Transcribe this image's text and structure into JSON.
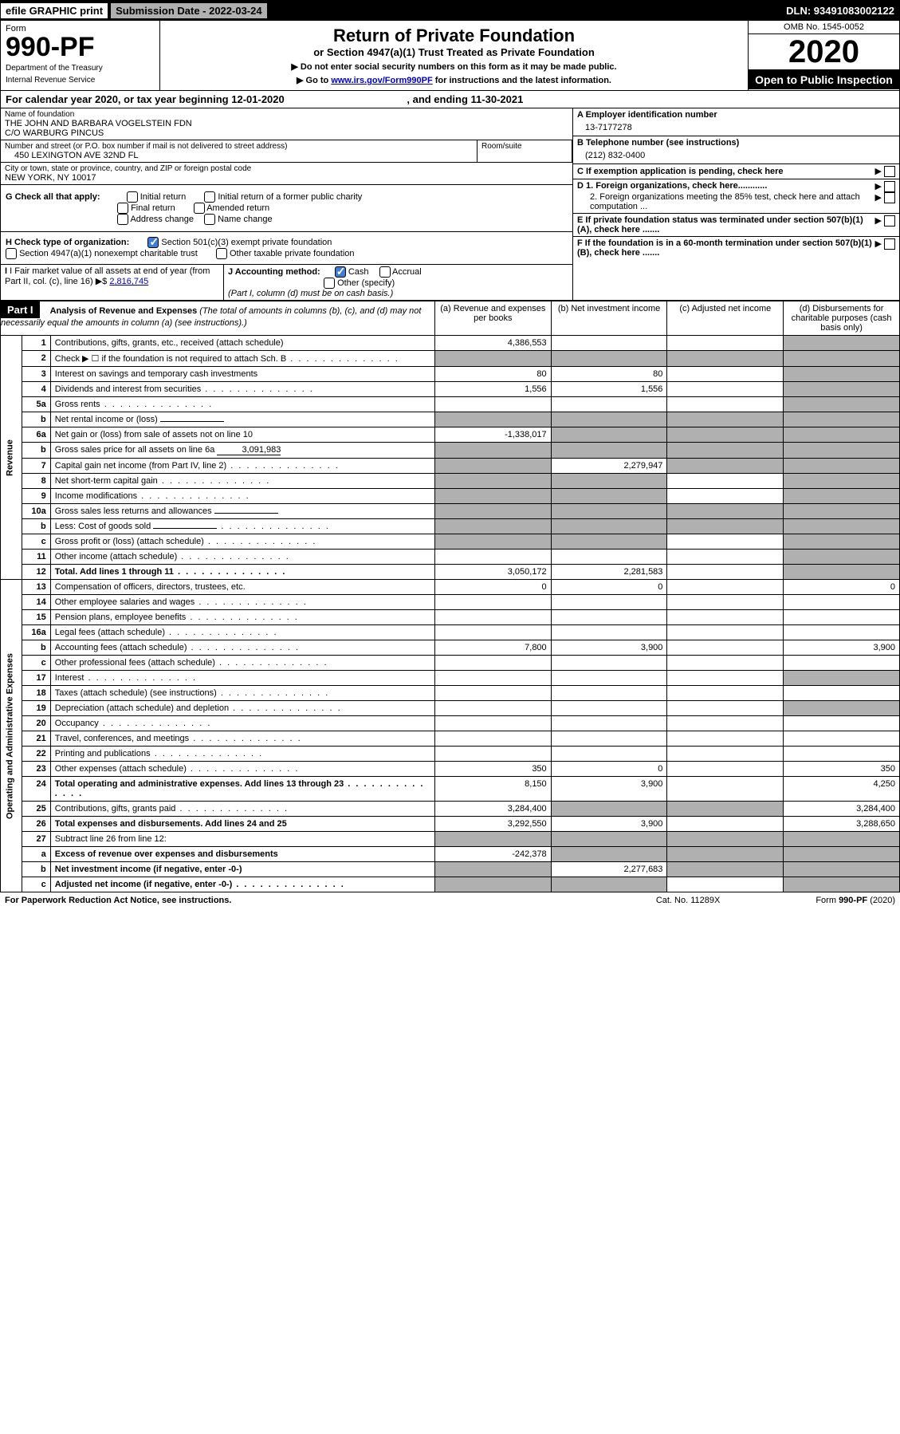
{
  "topbar": {
    "efile": "efile GRAPHIC print",
    "submission_label": "Submission Date - 2022-03-24",
    "dln": "DLN: 93491083002122"
  },
  "header": {
    "form_label": "Form",
    "form_number": "990-PF",
    "dept1": "Department of the Treasury",
    "dept2": "Internal Revenue Service",
    "title": "Return of Private Foundation",
    "subtitle": "or Section 4947(a)(1) Trust Treated as Private Foundation",
    "instr1": "▶ Do not enter social security numbers on this form as it may be made public.",
    "instr2_pre": "▶ Go to ",
    "instr2_link": "www.irs.gov/Form990PF",
    "instr2_post": " for instructions and the latest information.",
    "omb": "OMB No. 1545-0052",
    "year": "2020",
    "open": "Open to Public Inspection"
  },
  "calendar": {
    "text_pre": "For calendar year 2020, or tax year beginning ",
    "begin": "12-01-2020",
    "mid": " , and ending ",
    "end": "11-30-2021"
  },
  "identity": {
    "name_label": "Name of foundation",
    "name1": "THE JOHN AND BARBARA VOGELSTEIN FDN",
    "name2": "C/O WARBURG PINCUS",
    "addr_label": "Number and street (or P.O. box number if mail is not delivered to street address)",
    "addr": "450 LEXINGTON AVE 32ND FL",
    "room_label": "Room/suite",
    "city_label": "City or town, state or province, country, and ZIP or foreign postal code",
    "city": "NEW YORK, NY  10017",
    "a_label": "A Employer identification number",
    "a_val": "13-7177278",
    "b_label": "B Telephone number (see instructions)",
    "b_val": "(212) 832-0400",
    "c_label": "C If exemption application is pending, check here",
    "d1": "D 1. Foreign organizations, check here............",
    "d2": "2. Foreign organizations meeting the 85% test, check here and attach computation ...",
    "e_label": "E  If private foundation status was terminated under section 507(b)(1)(A), check here .......",
    "f_label": "F  If the foundation is in a 60-month termination under section 507(b)(1)(B), check here .......",
    "g_label": "G Check all that apply:",
    "g_opts": [
      "Initial return",
      "Initial return of a former public charity",
      "Final return",
      "Amended return",
      "Address change",
      "Name change"
    ],
    "h_label": "H Check type of organization:",
    "h1": "Section 501(c)(3) exempt private foundation",
    "h2": "Section 4947(a)(1) nonexempt charitable trust",
    "h3": "Other taxable private foundation",
    "i_label": "I Fair market value of all assets at end of year (from Part II, col. (c), line 16) ▶$ ",
    "i_val": "2,816,745",
    "j_label": "J Accounting method:",
    "j_cash": "Cash",
    "j_accrual": "Accrual",
    "j_other": "Other (specify)",
    "j_note": "(Part I, column (d) must be on cash basis.)"
  },
  "part1": {
    "label": "Part I",
    "title": "Analysis of Revenue and Expenses",
    "title_note": " (The total of amounts in columns (b), (c), and (d) may not necessarily equal the amounts in column (a) (see instructions).)",
    "cols": {
      "a": "(a)   Revenue and expenses per books",
      "b": "(b)   Net investment income",
      "c": "(c)   Adjusted net income",
      "d": "(d)   Disbursements for charitable purposes (cash basis only)"
    }
  },
  "revenue_label": "Revenue",
  "expenses_label": "Operating and Administrative Expenses",
  "rows": [
    {
      "n": "1",
      "desc": "Contributions, gifts, grants, etc., received (attach schedule)",
      "a": "4,386,553",
      "b": "",
      "c": "",
      "d": "shade"
    },
    {
      "n": "2",
      "desc": "Check ▶ ☐ if the foundation is not required to attach Sch. B",
      "a": "shade",
      "b": "shade",
      "c": "shade",
      "d": "shade",
      "dots": true
    },
    {
      "n": "3",
      "desc": "Interest on savings and temporary cash investments",
      "a": "80",
      "b": "80",
      "c": "",
      "d": "shade"
    },
    {
      "n": "4",
      "desc": "Dividends and interest from securities",
      "a": "1,556",
      "b": "1,556",
      "c": "",
      "d": "shade",
      "dots": true
    },
    {
      "n": "5a",
      "desc": "Gross rents",
      "a": "",
      "b": "",
      "c": "",
      "d": "shade",
      "dots": true
    },
    {
      "n": "b",
      "desc": "Net rental income or (loss)",
      "a": "shade",
      "b": "shade",
      "c": "shade",
      "d": "shade",
      "inline": ""
    },
    {
      "n": "6a",
      "desc": "Net gain or (loss) from sale of assets not on line 10",
      "a": "-1,338,017",
      "b": "shade",
      "c": "shade",
      "d": "shade"
    },
    {
      "n": "b",
      "desc": "Gross sales price for all assets on line 6a",
      "a": "shade",
      "b": "shade",
      "c": "shade",
      "d": "shade",
      "inline": "3,091,983"
    },
    {
      "n": "7",
      "desc": "Capital gain net income (from Part IV, line 2)",
      "a": "shade",
      "b": "2,279,947",
      "c": "shade",
      "d": "shade",
      "dots": true
    },
    {
      "n": "8",
      "desc": "Net short-term capital gain",
      "a": "shade",
      "b": "shade",
      "c": "",
      "d": "shade",
      "dots": true
    },
    {
      "n": "9",
      "desc": "Income modifications",
      "a": "shade",
      "b": "shade",
      "c": "",
      "d": "shade",
      "dots": true
    },
    {
      "n": "10a",
      "desc": "Gross sales less returns and allowances",
      "a": "shade",
      "b": "shade",
      "c": "shade",
      "d": "shade",
      "inline": ""
    },
    {
      "n": "b",
      "desc": "Less: Cost of goods sold",
      "a": "shade",
      "b": "shade",
      "c": "shade",
      "d": "shade",
      "inline": "",
      "dots": true
    },
    {
      "n": "c",
      "desc": "Gross profit or (loss) (attach schedule)",
      "a": "shade",
      "b": "shade",
      "c": "",
      "d": "shade",
      "dots": true
    },
    {
      "n": "11",
      "desc": "Other income (attach schedule)",
      "a": "",
      "b": "",
      "c": "",
      "d": "shade",
      "dots": true
    },
    {
      "n": "12",
      "desc": "Total. Add lines 1 through 11",
      "a": "3,050,172",
      "b": "2,281,583",
      "c": "",
      "d": "shade",
      "bold": true,
      "dots": true
    },
    {
      "n": "13",
      "desc": "Compensation of officers, directors, trustees, etc.",
      "a": "0",
      "b": "0",
      "c": "",
      "d": "0"
    },
    {
      "n": "14",
      "desc": "Other employee salaries and wages",
      "a": "",
      "b": "",
      "c": "",
      "d": "",
      "dots": true
    },
    {
      "n": "15",
      "desc": "Pension plans, employee benefits",
      "a": "",
      "b": "",
      "c": "",
      "d": "",
      "dots": true
    },
    {
      "n": "16a",
      "desc": "Legal fees (attach schedule)",
      "a": "",
      "b": "",
      "c": "",
      "d": "",
      "dots": true
    },
    {
      "n": "b",
      "desc": "Accounting fees (attach schedule)",
      "a": "7,800",
      "b": "3,900",
      "c": "",
      "d": "3,900",
      "dots": true
    },
    {
      "n": "c",
      "desc": "Other professional fees (attach schedule)",
      "a": "",
      "b": "",
      "c": "",
      "d": "",
      "dots": true
    },
    {
      "n": "17",
      "desc": "Interest",
      "a": "",
      "b": "",
      "c": "",
      "d": "shade",
      "dots": true
    },
    {
      "n": "18",
      "desc": "Taxes (attach schedule) (see instructions)",
      "a": "",
      "b": "",
      "c": "",
      "d": "",
      "dots": true
    },
    {
      "n": "19",
      "desc": "Depreciation (attach schedule) and depletion",
      "a": "",
      "b": "",
      "c": "",
      "d": "shade",
      "dots": true
    },
    {
      "n": "20",
      "desc": "Occupancy",
      "a": "",
      "b": "",
      "c": "",
      "d": "",
      "dots": true
    },
    {
      "n": "21",
      "desc": "Travel, conferences, and meetings",
      "a": "",
      "b": "",
      "c": "",
      "d": "",
      "dots": true
    },
    {
      "n": "22",
      "desc": "Printing and publications",
      "a": "",
      "b": "",
      "c": "",
      "d": "",
      "dots": true
    },
    {
      "n": "23",
      "desc": "Other expenses (attach schedule)",
      "a": "350",
      "b": "0",
      "c": "",
      "d": "350",
      "dots": true
    },
    {
      "n": "24",
      "desc": "Total operating and administrative expenses. Add lines 13 through 23",
      "a": "8,150",
      "b": "3,900",
      "c": "",
      "d": "4,250",
      "bold": true,
      "dots": true
    },
    {
      "n": "25",
      "desc": "Contributions, gifts, grants paid",
      "a": "3,284,400",
      "b": "shade",
      "c": "shade",
      "d": "3,284,400",
      "dots": true
    },
    {
      "n": "26",
      "desc": "Total expenses and disbursements. Add lines 24 and 25",
      "a": "3,292,550",
      "b": "3,900",
      "c": "",
      "d": "3,288,650",
      "bold": true
    },
    {
      "n": "27",
      "desc": "Subtract line 26 from line 12:",
      "a": "shade",
      "b": "shade",
      "c": "shade",
      "d": "shade"
    },
    {
      "n": "a",
      "desc": "Excess of revenue over expenses and disbursements",
      "a": "-242,378",
      "b": "shade",
      "c": "shade",
      "d": "shade",
      "bold": true
    },
    {
      "n": "b",
      "desc": "Net investment income (if negative, enter -0-)",
      "a": "shade",
      "b": "2,277,683",
      "c": "shade",
      "d": "shade",
      "bold": true
    },
    {
      "n": "c",
      "desc": "Adjusted net income (if negative, enter -0-)",
      "a": "shade",
      "b": "shade",
      "c": "",
      "d": "shade",
      "bold": true,
      "dots": true
    }
  ],
  "footer": {
    "left": "For Paperwork Reduction Act Notice, see instructions.",
    "mid": "Cat. No. 11289X",
    "right": "Form 990-PF (2020)"
  }
}
